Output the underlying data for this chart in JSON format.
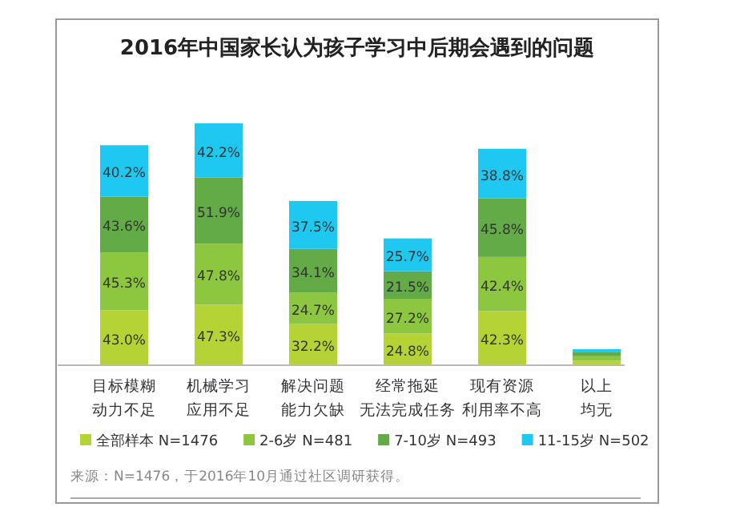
{
  "chart_data": {
    "type": "bar",
    "stacked": true,
    "title": "2016年中国家长认为孩子学习中后期会遇到的问题",
    "categories": [
      "目标模糊动力不足",
      "机械学习应用不足",
      "解决问题能力欠缺",
      "经常拖延无法完成任务",
      "现有资源利用率不高",
      "以上均无"
    ],
    "series": [
      {
        "name": "全部样本 N=1476",
        "color": "#b5d334",
        "values": [
          43.0,
          47.3,
          32.2,
          24.8,
          42.3,
          3.5
        ],
        "value_labels": [
          "43.0%",
          "47.3%",
          "32.2%",
          "24.8%",
          "42.3%",
          null
        ]
      },
      {
        "name": "2-6岁 N=481",
        "color": "#8dc63f",
        "values": [
          45.3,
          47.8,
          24.7,
          27.2,
          42.4,
          3.5
        ],
        "value_labels": [
          "45.3%",
          "47.8%",
          "24.7%",
          "27.2%",
          "42.4%",
          null
        ]
      },
      {
        "name": "7-10岁 N=493",
        "color": "#62ab47",
        "values": [
          43.6,
          51.9,
          34.1,
          21.5,
          45.8,
          3.5
        ],
        "value_labels": [
          "43.6%",
          "51.9%",
          "34.1%",
          "21.5%",
          "45.8%",
          null
        ]
      },
      {
        "name": "11-15岁 N=502",
        "color": "#1ec8f0",
        "values": [
          40.2,
          42.2,
          37.5,
          25.7,
          38.8,
          2.0
        ],
        "value_labels": [
          "40.2%",
          "42.2%",
          "37.5%",
          "25.7%",
          "38.8%",
          null
        ]
      }
    ],
    "legend": "bottom",
    "annotations": [
      "来源：N=1476，于2016年10月通过社区调研获得。"
    ]
  }
}
